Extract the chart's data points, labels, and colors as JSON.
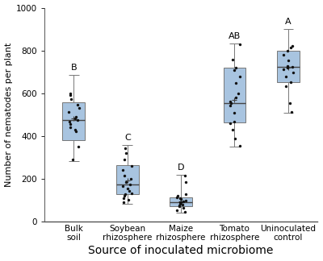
{
  "categories": [
    "Bulk\nsoil",
    "Soybean\nrhizosphere",
    "Maize\nrhizosphere",
    "Tomato\nrhizosphere",
    "Uninoculated\ncontrol"
  ],
  "significance_labels": [
    "B",
    "C",
    "D",
    "AB",
    "A"
  ],
  "box_color": "#a8c4e0",
  "box_edgecolor": "#777777",
  "median_color": "#444444",
  "whisker_color": "#777777",
  "dot_color": "#111111",
  "ylabel": "Number of nematodes per plant",
  "xlabel": "Source of inoculated microbiome",
  "ylim": [
    0,
    1000
  ],
  "yticks": [
    0,
    200,
    400,
    600,
    800,
    1000
  ],
  "box_data": {
    "Bulk soil": {
      "q1": 380,
      "median": 475,
      "q3": 555,
      "mean": 480,
      "whisker_lo": 280,
      "whisker_hi": 685,
      "points": [
        290,
        350,
        420,
        430,
        440,
        455,
        465,
        475,
        480,
        490,
        510,
        530,
        545,
        570,
        590,
        600
      ]
    },
    "Soybean rhizosphere": {
      "q1": 125,
      "median": 172,
      "q3": 262,
      "mean": 192,
      "whisker_lo": 82,
      "whisker_hi": 355,
      "points": [
        88,
        100,
        108,
        118,
        125,
        130,
        140,
        152,
        163,
        172,
        182,
        198,
        212,
        238,
        260,
        288,
        318,
        342
      ]
    },
    "Maize rhizosphere": {
      "q1": 68,
      "median": 88,
      "q3": 112,
      "mean": 93,
      "whisker_lo": 38,
      "whisker_hi": 218,
      "points": [
        42,
        52,
        62,
        68,
        73,
        78,
        83,
        88,
        90,
        93,
        98,
        103,
        108,
        112,
        118,
        128,
        182,
        212
      ]
    },
    "Tomato rhizosphere": {
      "q1": 462,
      "median": 552,
      "q3": 718,
      "mean": 568,
      "whisker_lo": 348,
      "whisker_hi": 832,
      "points": [
        352,
        388,
        428,
        458,
        468,
        508,
        542,
        552,
        562,
        578,
        598,
        648,
        678,
        708,
        718,
        758,
        828
      ]
    },
    "Uninoculated control": {
      "q1": 652,
      "median": 722,
      "q3": 798,
      "mean": 718,
      "whisker_lo": 508,
      "whisker_hi": 902,
      "points": [
        512,
        552,
        632,
        652,
        678,
        698,
        712,
        718,
        722,
        728,
        752,
        778,
        798,
        812,
        822
      ]
    },
    "order": [
      "Bulk soil",
      "Soybean rhizosphere",
      "Maize rhizosphere",
      "Tomato rhizosphere",
      "Uninoculated control"
    ]
  },
  "sig_label_fontsize": 8,
  "ylabel_fontsize": 8,
  "tick_fontsize": 7.5,
  "xlabel_fontsize": 10,
  "background_color": "#ffffff",
  "box_width": 0.42,
  "cap_ratio": 0.45
}
